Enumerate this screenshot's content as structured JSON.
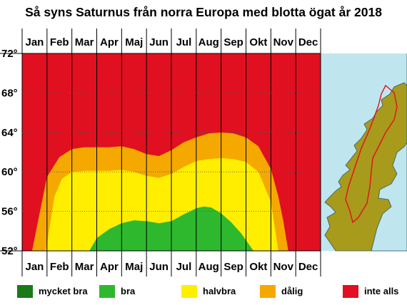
{
  "chart_data": {
    "type": "heatmap",
    "title": "Så syns Saturnus från norra Europa med blotta ögat år 2018",
    "months": [
      "Jan",
      "Feb",
      "Mar",
      "Apr",
      "Maj",
      "Jun",
      "Jul",
      "Aug",
      "Sep",
      "Okt",
      "Nov",
      "Dec"
    ],
    "ylim": [
      52,
      72
    ],
    "yticks": [
      "72°",
      "68°",
      "64°",
      "60°",
      "56°",
      "52°"
    ],
    "ytick_values": [
      72,
      68,
      64,
      60,
      56,
      52
    ],
    "categories": [
      {
        "key": "mycket_bra",
        "label": "mycket bra",
        "color": "#1a7a1a"
      },
      {
        "key": "bra",
        "label": "bra",
        "color": "#2eb82e"
      },
      {
        "key": "halvbra",
        "label": "halvbra",
        "color": "#ffee00"
      },
      {
        "key": "dalig",
        "label": "dålig",
        "color": "#f5a800"
      },
      {
        "key": "inte_alls",
        "label": "inte alls",
        "color": "#e01020"
      }
    ],
    "boundaries": {
      "dalig_upper": {
        "month": [
          0.4,
          1.0,
          1.5,
          2.0,
          2.5,
          3.0,
          3.5,
          4.0,
          4.5,
          5.0,
          5.5,
          6.0,
          6.5,
          7.0,
          7.5,
          8.0,
          8.5,
          9.0,
          9.5,
          10.0,
          10.3,
          10.5,
          10.7
        ],
        "lat": [
          52,
          59.5,
          61.5,
          62.3,
          62.5,
          62.5,
          62.5,
          62.6,
          62.3,
          61.8,
          61.6,
          62.2,
          63.0,
          63.5,
          63.9,
          64.0,
          63.9,
          63.5,
          62.6,
          60.3,
          57.5,
          55.0,
          52
        ]
      },
      "halvbra_upper": {
        "month": [
          0.95,
          1.3,
          1.6,
          2.0,
          2.5,
          3.0,
          3.5,
          4.0,
          4.5,
          5.0,
          5.5,
          6.0,
          6.5,
          7.0,
          7.5,
          8.0,
          8.5,
          9.0,
          9.5,
          10.0,
          10.3
        ],
        "lat": [
          52,
          57.5,
          59.3,
          60.0,
          60.1,
          60.1,
          60.1,
          60.2,
          60.0,
          59.6,
          59.4,
          59.8,
          60.5,
          61.1,
          61.3,
          61.4,
          61.3,
          61.0,
          60.0,
          57.0,
          52
        ]
      },
      "bra_upper": {
        "month": [
          2.7,
          3.0,
          3.5,
          4.0,
          4.5,
          5.0,
          5.5,
          6.0,
          6.5,
          7.0,
          7.3,
          7.6,
          8.0,
          8.4,
          8.8,
          9.3
        ],
        "lat": [
          52,
          53.3,
          54.2,
          54.8,
          55.1,
          55.0,
          54.8,
          55.0,
          55.7,
          56.3,
          56.5,
          56.4,
          55.8,
          54.9,
          53.8,
          52
        ]
      }
    },
    "map": {
      "region": "Skandinavien"
    }
  }
}
